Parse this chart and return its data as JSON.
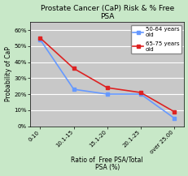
{
  "title": "Prostate Cancer (CaP) Risk & % Free\nPSA",
  "xlabel": "Ratio of  Free PSA/Total\nPSA (%)",
  "ylabel": "Probability of CaP",
  "x_labels": [
    "0-10",
    "10.1-15",
    "15.1-20",
    "20.1-25",
    "over 25.00"
  ],
  "series": [
    {
      "label": "50-64 years\nold",
      "color": "#6699ff",
      "values": [
        54,
        23,
        20,
        20,
        5
      ],
      "marker": "s",
      "markersize": 2.5,
      "linewidth": 1.2
    },
    {
      "label": "65-75 years\nold",
      "color": "#dd2222",
      "values": [
        55,
        36,
        24,
        21,
        9
      ],
      "marker": "s",
      "markersize": 2.5,
      "linewidth": 1.2
    }
  ],
  "ylim": [
    0,
    65
  ],
  "yticks": [
    0,
    10,
    20,
    30,
    40,
    50,
    60
  ],
  "ytick_labels": [
    "0%",
    "10%",
    "20%",
    "30%",
    "40%",
    "50%",
    "60%"
  ],
  "plot_bg_color": "#c8c8c8",
  "outer_bg_color": "#c8e8c8",
  "title_fontsize": 6.5,
  "axis_label_fontsize": 5.5,
  "tick_fontsize": 5.0,
  "legend_fontsize": 5.0,
  "grid_color": "#aaaaaa"
}
